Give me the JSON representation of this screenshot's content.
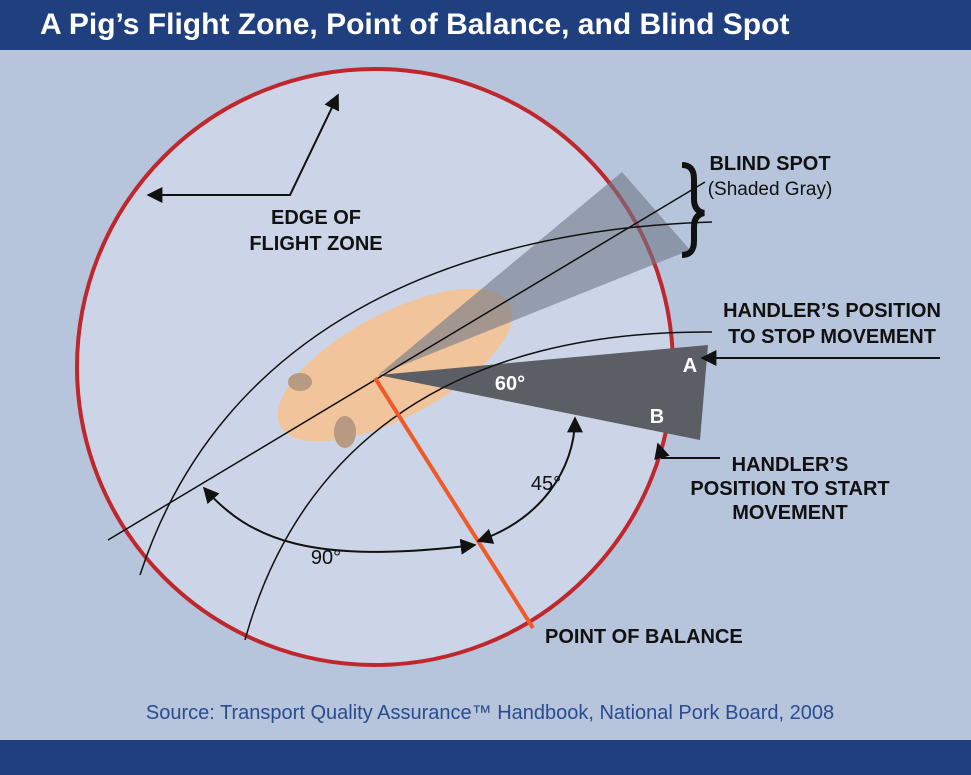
{
  "header": {
    "title": "A Pig’s Flight Zone, Point of Balance, and Blind Spot"
  },
  "labels": {
    "edge_of_flight_zone": [
      "EDGE OF",
      "FLIGHT ZONE"
    ],
    "blind_spot": [
      "BLIND SPOT",
      "(Shaded Gray)"
    ],
    "stop_movement": [
      "HANDLER’S POSITION",
      "TO STOP MOVEMENT"
    ],
    "start_movement": [
      "HANDLER’S",
      "POSITION TO START",
      "MOVEMENT"
    ],
    "point_a": "A",
    "point_b": "B",
    "angle_60": "60°",
    "angle_45": "45°",
    "angle_90": "90°",
    "point_of_balance": "POINT OF BALANCE"
  },
  "source": "Source: Transport Quality Assurance™ Handbook, National Pork Board, 2008"
}
